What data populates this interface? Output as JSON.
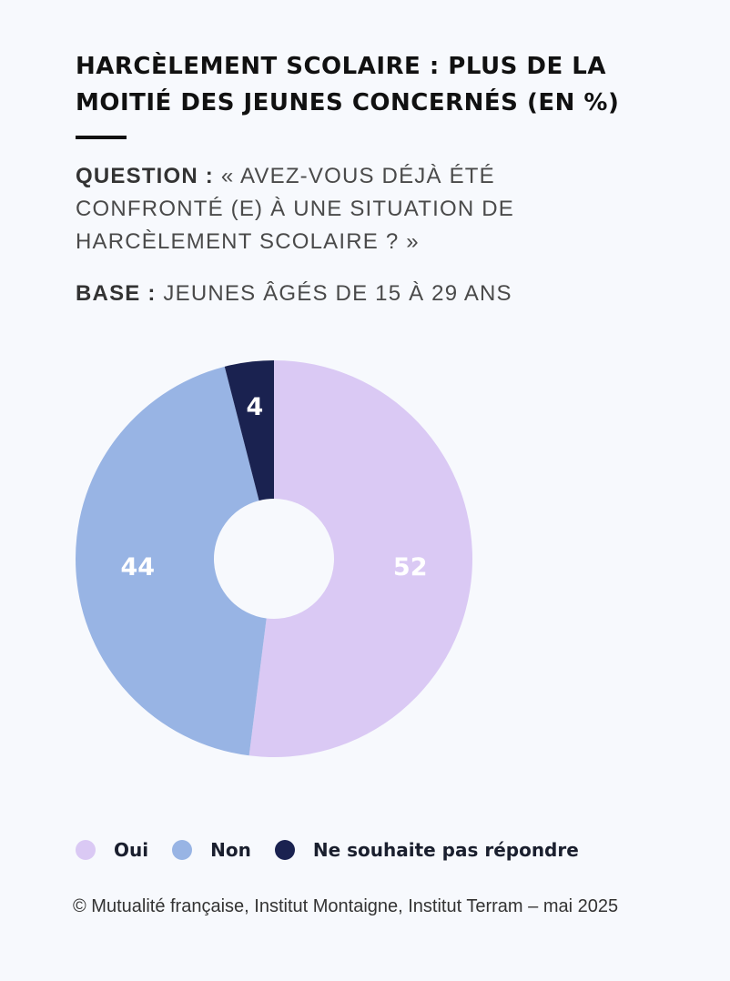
{
  "title": "HARCÈLEMENT SCOLAIRE : PLUS DE LA MOITIÉ DES JEUNES CONCERNÉS (EN %)",
  "question_label": "QUESTION :",
  "question_text": "« AVEZ-VOUS DÉJÀ ÉTÉ CONFRONTÉ (E) À UNE SITUATION DE HARCÈLEMENT SCOLAIRE ? »",
  "base_label": "BASE :",
  "base_text": "JEUNES ÂGÉS DE 15 À 29 ANS",
  "source": "© Mutualité française, Institut Montaigne, Institut Terram – mai 2025",
  "chart_data": {
    "type": "pie",
    "donut": true,
    "unit": "%",
    "categories": [
      "Oui",
      "Non",
      "Ne souhaite pas répondre"
    ],
    "values": [
      52,
      44,
      4
    ],
    "colors": [
      "#dac9f4",
      "#98b4e4",
      "#1a2250"
    ],
    "label_colors": [
      "#ffffff",
      "#ffffff",
      "#ffffff"
    ],
    "start_angle_deg": 0,
    "direction": "clockwise-from-top",
    "legend": {
      "placement": "bottom-left",
      "entries": [
        "Oui",
        "Non",
        "Ne souhaite pas répondre"
      ]
    }
  }
}
